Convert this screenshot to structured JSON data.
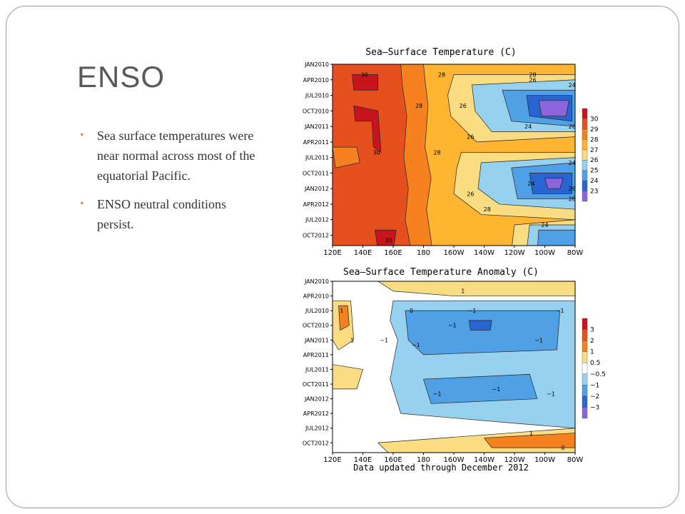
{
  "slide": {
    "title": "ENSO",
    "bullets": [
      "Sea surface temperatures were near normal across most of the equatorial Pacific.",
      "ENSO neutral conditions persist."
    ]
  },
  "footer": "Data updated through December 2012",
  "chart_data": [
    {
      "type": "heatmap",
      "title": "Sea–Surface Temperature (C)",
      "x_ticks": [
        "120E",
        "140E",
        "160E",
        "180",
        "160W",
        "140W",
        "120W",
        "100W",
        "80W"
      ],
      "y_ticks": [
        "JAN2010",
        "APR2010",
        "JUL2010",
        "OCT2010",
        "JAN2011",
        "APR2011",
        "JUL2011",
        "OCT2011",
        "JAN2012",
        "APR2012",
        "JUL2012",
        "OCT2012"
      ],
      "legend_levels": [
        "30",
        "29",
        "28",
        "27",
        "26",
        "25",
        "24",
        "23"
      ],
      "legend_colors": [
        "#c8141e",
        "#e6501e",
        "#f5821e",
        "#ffb432",
        "#fadc82",
        "#96d2f0",
        "#50a0e6",
        "#2864d2",
        "#8c64dc"
      ],
      "contour_labels": [
        {
          "text": "30",
          "x": 141,
          "y": "MAR2010"
        },
        {
          "text": "28",
          "x": 192,
          "y": "MAR2010"
        },
        {
          "text": "28",
          "x": 252,
          "y": "MAR2010"
        },
        {
          "text": "26",
          "x": 252,
          "y": "APR2010"
        },
        {
          "text": "24",
          "x": 278,
          "y": "MAY2010"
        },
        {
          "text": "28",
          "x": 177,
          "y": "SEP2010"
        },
        {
          "text": "26",
          "x": 206,
          "y": "SEP2010"
        },
        {
          "text": "24",
          "x": 249,
          "y": "JAN2011"
        },
        {
          "text": "26",
          "x": 278,
          "y": "JAN2011"
        },
        {
          "text": "26",
          "x": 211,
          "y": "MAR2011"
        },
        {
          "text": "30",
          "x": 149,
          "y": "JUN2011"
        },
        {
          "text": "28",
          "x": 189,
          "y": "JUN2011"
        },
        {
          "text": "24",
          "x": 278,
          "y": "AUG2011"
        },
        {
          "text": "24",
          "x": 251,
          "y": "DEC2011"
        },
        {
          "text": "26",
          "x": 278,
          "y": "JAN2012"
        },
        {
          "text": "26",
          "x": 211,
          "y": "FEB2012"
        },
        {
          "text": "28",
          "x": 278,
          "y": "MAR2012"
        },
        {
          "text": "28",
          "x": 222,
          "y": "MAY2012"
        },
        {
          "text": "24",
          "x": 260,
          "y": "AUG2012"
        },
        {
          "text": "30",
          "x": 157,
          "y": "NOV2012"
        }
      ]
    },
    {
      "type": "heatmap",
      "title": "Sea–Surface Temperature Anomaly (C)",
      "x_ticks": [
        "120E",
        "140E",
        "160E",
        "180",
        "160W",
        "140W",
        "120W",
        "100W",
        "80W"
      ],
      "y_ticks": [
        "JAN2010",
        "APR2010",
        "JUL2010",
        "OCT2010",
        "JAN2011",
        "APR2011",
        "JUL2011",
        "OCT2011",
        "JAN2012",
        "APR2012",
        "JUL2012",
        "OCT2012"
      ],
      "legend_levels": [
        "3",
        "2",
        "1",
        "0.5",
        "−0.5",
        "−1",
        "−2",
        "−3"
      ],
      "legend_colors": [
        "#c8141e",
        "#e6501e",
        "#f5821e",
        "#fadc82",
        "#ffffff",
        "#96d2f0",
        "#50a0e6",
        "#2864d2",
        "#8c64dc"
      ],
      "contour_labels": [
        {
          "text": "1",
          "x": 206,
          "y": "MAR2010"
        },
        {
          "text": "1",
          "x": 126,
          "y": "JUL2010"
        },
        {
          "text": "0",
          "x": 172,
          "y": "JUL2010"
        },
        {
          "text": "−1",
          "x": 212,
          "y": "JUL2010"
        },
        {
          "text": "−1",
          "x": 270,
          "y": "JUL2010"
        },
        {
          "text": "−1",
          "x": 199,
          "y": "OCT2010"
        },
        {
          "text": "−1",
          "x": 154,
          "y": "JAN2011"
        },
        {
          "text": "−1",
          "x": 256,
          "y": "JAN2011"
        },
        {
          "text": "−1",
          "x": 175,
          "y": "FEB2011"
        },
        {
          "text": "1",
          "x": 133,
          "y": "JAN2011"
        },
        {
          "text": "−1",
          "x": 228,
          "y": "NOV2011"
        },
        {
          "text": "−1",
          "x": 189,
          "y": "DEC2011"
        },
        {
          "text": "−1",
          "x": 264,
          "y": "DEC2011"
        },
        {
          "text": "1",
          "x": 251,
          "y": "AUG2012"
        },
        {
          "text": "0",
          "x": 272,
          "y": "NOV2012"
        }
      ]
    }
  ]
}
